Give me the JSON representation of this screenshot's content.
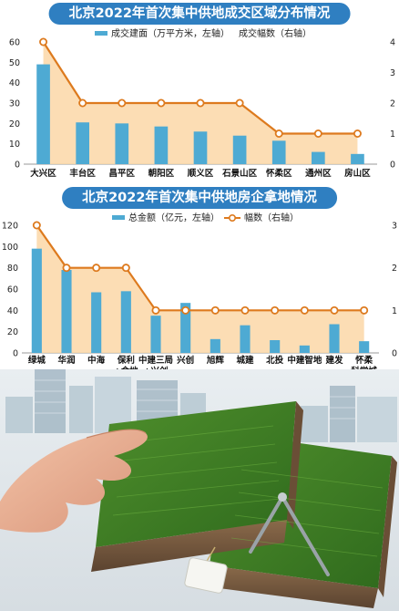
{
  "chart_data": [
    {
      "type": "bar",
      "title": "北京2022年首次集中供地成交区域分布情况",
      "categories": [
        "大兴区",
        "丰台区",
        "昌平区",
        "朝阳区",
        "顺义区",
        "石景山区",
        "怀柔区",
        "通州区",
        "房山区"
      ],
      "series": [
        {
          "name": "成交建面（万平方米，左轴）",
          "type": "bar",
          "axis": "left",
          "values": [
            49,
            20.5,
            20,
            18.5,
            16,
            14,
            11.5,
            6,
            5
          ]
        },
        {
          "name": "成交幅数（右轴）",
          "type": "line",
          "axis": "right",
          "values": [
            4,
            2,
            2,
            2,
            2,
            2,
            1,
            1,
            1
          ]
        }
      ],
      "ylim_left": [
        0,
        60
      ],
      "yticks_left": [
        0,
        10,
        20,
        30,
        40,
        50,
        60
      ],
      "ylim_right": [
        0,
        4
      ],
      "yticks_right": [
        0,
        1,
        2,
        3,
        4
      ],
      "colors": {
        "bar": "#4eaad3",
        "line": "#dd7a1e",
        "area": "#fbd7a7"
      }
    },
    {
      "type": "bar",
      "title": "北京2022年首次集中供地房企拿地情况",
      "categories": [
        "绿城",
        "华润",
        "中海",
        "保利\n+金地",
        "中建三局\n+兴创",
        "兴创",
        "旭辉",
        "城建",
        "北投",
        "中建智地",
        "建发",
        "怀柔\n科学城"
      ],
      "series": [
        {
          "name": "总金额（亿元，左轴）",
          "type": "bar",
          "axis": "left",
          "values": [
            98,
            78,
            57,
            58,
            35,
            47,
            13,
            26,
            12,
            7,
            27,
            11
          ]
        },
        {
          "name": "幅数（右轴）",
          "type": "line",
          "axis": "right",
          "values": [
            3,
            2,
            2,
            2,
            1,
            1,
            1,
            1,
            1,
            1,
            1,
            1
          ]
        }
      ],
      "ylim_left": [
        0,
        120
      ],
      "yticks_left": [
        0,
        20,
        40,
        60,
        80,
        100,
        120
      ],
      "ylim_right": [
        0,
        3
      ],
      "yticks_right": [
        0,
        1,
        2,
        3
      ],
      "colors": {
        "bar": "#4eaad3",
        "line": "#dd7a1e",
        "area": "#fbd7a7"
      }
    }
  ]
}
